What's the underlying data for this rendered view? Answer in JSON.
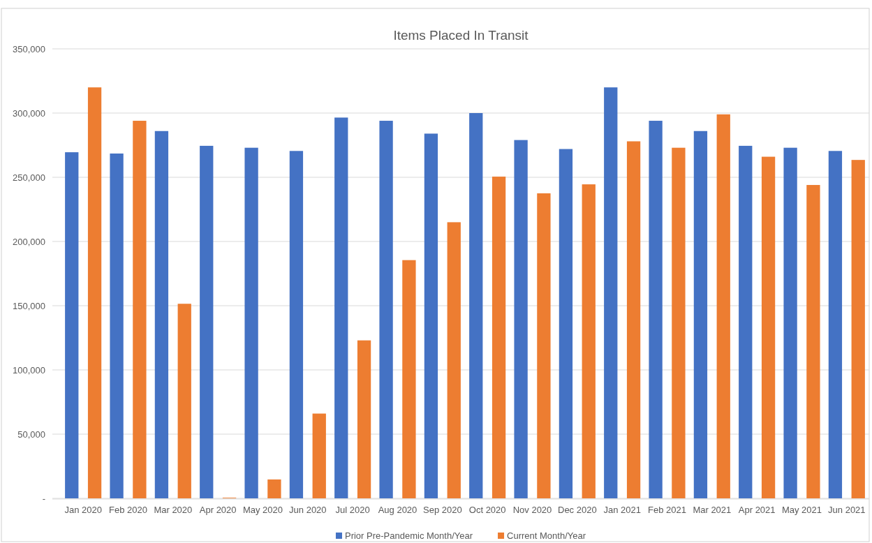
{
  "chart_data": {
    "type": "bar",
    "title": "Items Placed In Transit",
    "categories": [
      "Jan 2020",
      "Feb 2020",
      "Mar 2020",
      "Apr 2020",
      "May 2020",
      "Jun 2020",
      "Jul 2020",
      "Aug 2020",
      "Sep 2020",
      "Oct 2020",
      "Nov 2020",
      "Dec 2020",
      "Jan 2021",
      "Feb 2021",
      "Mar 2021",
      "Apr 2021",
      "May 2021",
      "Jun 2021"
    ],
    "series": [
      {
        "name": "Prior Pre-Pandemic Month/Year",
        "color": "#4472c4",
        "values": [
          269500,
          268500,
          286000,
          274500,
          273000,
          270500,
          296500,
          294000,
          284000,
          300000,
          279000,
          272000,
          320000,
          294000,
          286000,
          274500,
          273000,
          270500
        ]
      },
      {
        "name": "Current Month/Year",
        "color": "#ed7d31",
        "values": [
          320000,
          294000,
          151500,
          500,
          14700,
          66000,
          123000,
          185500,
          215000,
          250500,
          237500,
          244500,
          278000,
          273000,
          299000,
          266000,
          244000,
          263500
        ]
      }
    ],
    "ylim": [
      0,
      350000
    ],
    "yticks": [
      {
        "value": 0,
        "label": "-"
      },
      {
        "value": 50000,
        "label": "50,000"
      },
      {
        "value": 100000,
        "label": "100,000"
      },
      {
        "value": 150000,
        "label": "150,000"
      },
      {
        "value": 200000,
        "label": "200,000"
      },
      {
        "value": 250000,
        "label": "250,000"
      },
      {
        "value": 300000,
        "label": "300,000"
      },
      {
        "value": 350000,
        "label": "350,000"
      }
    ],
    "grid": "y",
    "legend": "bottom"
  }
}
